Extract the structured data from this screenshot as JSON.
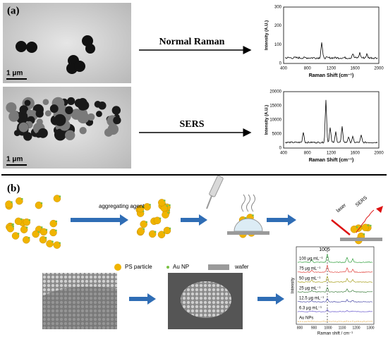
{
  "panel_a": {
    "label": "(a)",
    "scale_bars": [
      "1 μm",
      "1 μm"
    ],
    "rows": [
      {
        "method": "Normal Raman",
        "chart": {
          "y_label": "Intensity (A.U.)",
          "x_label": "Raman Shift (cm⁻¹)",
          "yticks": [
            "0",
            "100",
            "200",
            "300"
          ],
          "xticks": [
            "400",
            "800",
            "1200",
            "1600",
            "2000"
          ]
        }
      },
      {
        "method": "SERS",
        "chart": {
          "y_label": "Intensity (A.U.)",
          "x_label": "Raman Shift (cm⁻¹)",
          "yticks": [
            "0",
            "5000",
            "10000",
            "15000",
            "20000"
          ],
          "xticks": [
            "400",
            "800",
            "1200",
            "1600",
            "2000"
          ]
        }
      }
    ]
  },
  "panel_b": {
    "label": "(b)",
    "step_label": "aggregating agent",
    "laser": "laser",
    "sers": "SERS",
    "legend": [
      "PS particle",
      "Au NP",
      "wafer"
    ],
    "spectra": {
      "peak": "1005",
      "concentrations": [
        "100 μg mL⁻¹",
        "75 μg mL⁻¹",
        "50 μg mL⁻¹",
        "25 μg mL⁻¹",
        "12.5 μg mL⁻¹",
        "6.3 μg mL⁻¹",
        "Au NPs"
      ],
      "y_label": "Intensity",
      "x_label": "Raman shift / cm⁻¹",
      "xticks": [
        "800",
        "900",
        "1000",
        "1100",
        "1200",
        "1300"
      ]
    }
  }
}
